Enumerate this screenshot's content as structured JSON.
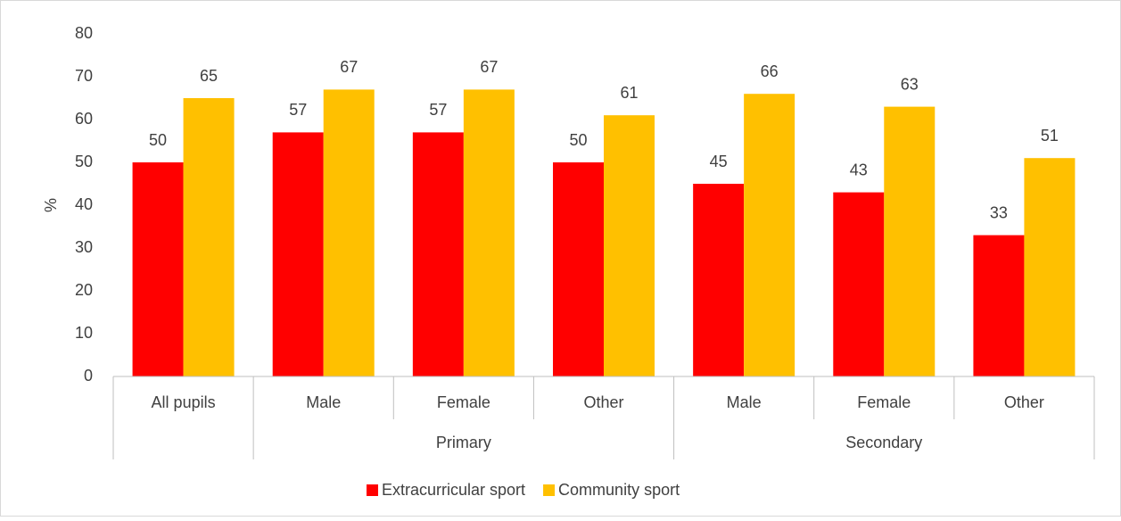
{
  "chart_data": {
    "type": "bar",
    "y_label": "%",
    "category_groups": [
      {
        "name": null,
        "categories": [
          "All pupils"
        ]
      },
      {
        "name": "Primary",
        "categories": [
          "Male",
          "Female",
          "Other"
        ]
      },
      {
        "name": "Secondary",
        "categories": [
          "Male",
          "Female",
          "Other"
        ]
      }
    ],
    "series": [
      {
        "name": "Extracurricular sport",
        "color": "#ff0000",
        "values": [
          50,
          57,
          57,
          50,
          45,
          43,
          33
        ]
      },
      {
        "name": "Community sport",
        "color": "#ffc000",
        "values": [
          65,
          67,
          67,
          61,
          66,
          63,
          51
        ]
      }
    ],
    "ylim": [
      0,
      80
    ],
    "yticks": [
      0,
      10,
      20,
      30,
      40,
      50,
      60,
      70,
      80
    ],
    "grid": false,
    "legend": "bottom"
  }
}
